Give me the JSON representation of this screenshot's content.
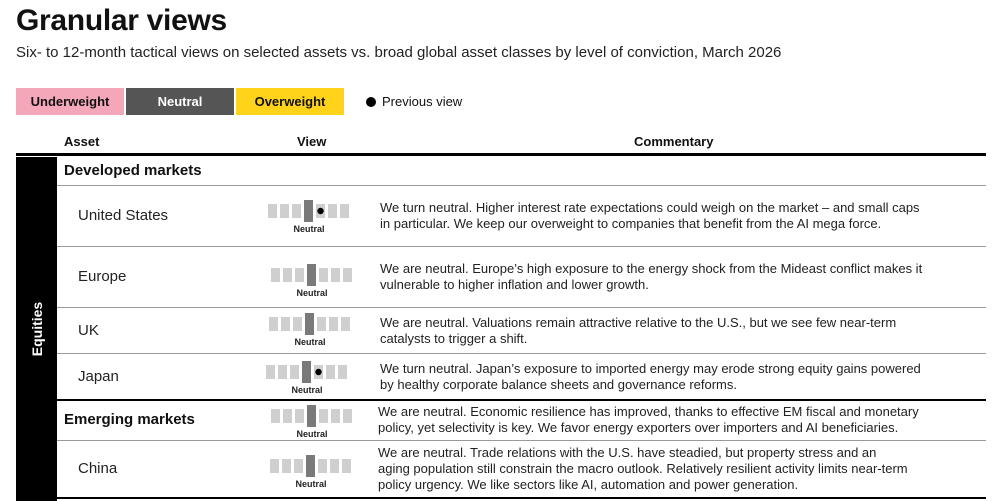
{
  "page": {
    "title": "Granular views",
    "subtitle": "Six- to 12-month tactical views on selected assets vs. broad global asset classes by level of conviction, March 2026"
  },
  "legend": {
    "underweight": "Underweight",
    "neutral": "Neutral",
    "overweight": "Overweight",
    "previous_view": "Previous view"
  },
  "colors": {
    "underweight": "#f4a7b9",
    "neutral": "#555555",
    "overweight": "#ffd31a",
    "scale_box": "#cfcfcf",
    "current_view": "#7a7a7a"
  },
  "table": {
    "headers": {
      "asset": "Asset",
      "view": "View",
      "commentary": "Commentary"
    },
    "group": "Equities",
    "rows": [
      {
        "kind": "section",
        "label": "Developed markets"
      },
      {
        "kind": "asset",
        "label": "United States",
        "view": "Neutral",
        "view_level": 0,
        "previous_level": 1,
        "commentary": [
          "We turn neutral. Higher interest rate expectations could weigh on the market – and small caps",
          "in particular. We keep our overweight to companies that benefit from the AI mega force."
        ]
      },
      {
        "kind": "asset",
        "label": "Europe",
        "view": "Neutral",
        "view_level": 0,
        "previous_level": null,
        "commentary": [
          "We are neutral. Europe’s high exposure to the energy shock from the Mideast conflict makes it",
          "vulnerable to higher inflation and lower growth."
        ]
      },
      {
        "kind": "asset",
        "label": "UK",
        "view": "Neutral",
        "view_level": 0,
        "previous_level": null,
        "commentary": [
          "We are neutral. Valuations remain attractive relative to the U.S., but we see few near-term",
          "catalysts to trigger a shift."
        ]
      },
      {
        "kind": "asset",
        "label": "Japan",
        "view": "Neutral",
        "view_level": 0,
        "previous_level": 1,
        "commentary": [
          "We turn neutral. Japan’s exposure to imported energy may erode strong equity gains powered",
          "by healthy corporate balance sheets and governance reforms."
        ]
      },
      {
        "kind": "section_asset",
        "label": "Emerging markets",
        "view": "Neutral",
        "view_level": 0,
        "previous_level": null,
        "commentary": [
          "We are neutral. Economic resilience has improved, thanks to effective EM fiscal and monetary",
          "policy, yet selectivity is key. We favor energy exporters over importers and AI beneficiaries."
        ]
      },
      {
        "kind": "asset",
        "label": "China",
        "view": "Neutral",
        "view_level": 0,
        "previous_level": null,
        "commentary": [
          "We are neutral. Trade relations with the U.S. have steadied, but property stress and an",
          "aging population still constrain the macro outlook. Relatively resilient activity limits near-term",
          "policy urgency. We like sectors like AI, automation and power generation."
        ]
      }
    ]
  }
}
